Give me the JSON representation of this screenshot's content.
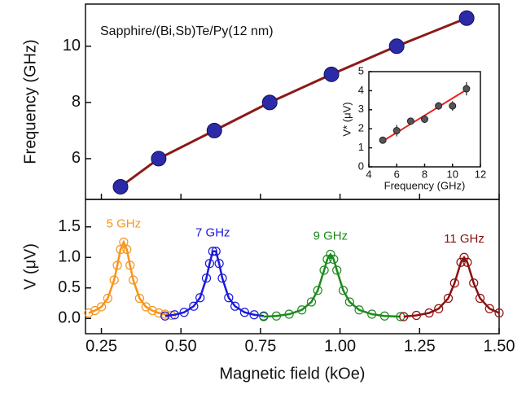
{
  "chart_data": [
    {
      "type": "scatter",
      "annotation": "Sapphire/(Bi,Sb)Te/Py(12 nm)",
      "ylabel": "Frequency (GHz)",
      "x": [
        0.31,
        0.43,
        0.605,
        0.779,
        0.973,
        1.178,
        1.398
      ],
      "values": [
        5,
        6,
        7,
        8,
        9,
        10,
        11
      ],
      "color": "#2b2ba8",
      "line_color": "#8b1a1a",
      "xlim": [
        0.2,
        1.5
      ],
      "ylim": [
        4.55,
        11.5
      ],
      "yticks": [
        6,
        8,
        10
      ]
    },
    {
      "type": "errorbar",
      "xlabel": "Frequency (GHz)",
      "ylabel": "V* (μV)",
      "x": [
        5,
        6,
        7,
        8,
        9,
        10,
        11
      ],
      "values": [
        1.4,
        1.9,
        2.4,
        2.5,
        3.2,
        3.2,
        4.1
      ],
      "errors": [
        0.15,
        0.3,
        0.15,
        0.2,
        0.2,
        0.25,
        0.35
      ],
      "color": "#222222",
      "fit": {
        "x": [
          5,
          11
        ],
        "values": [
          1.35,
          4.05
        ],
        "color": "#e8231f"
      },
      "xlim": [
        4,
        12
      ],
      "xticks": [
        4,
        6,
        8,
        10,
        12
      ],
      "ylim": [
        0,
        5
      ],
      "yticks": [
        0,
        1,
        2,
        3,
        4,
        5
      ]
    },
    {
      "type": "line",
      "xlabel": "Magnetic field (kOe)",
      "ylabel": "V (μV)",
      "xlim": [
        0.2,
        1.5
      ],
      "xticks": [
        0.25,
        {
          "value": 0.5,
          "label": "0.50"
        },
        0.75,
        {
          "value": 1,
          "label": "1.00"
        },
        1.25,
        {
          "value": 1.5,
          "label": "1.50"
        }
      ],
      "ylim": [
        -0.25,
        1.95
      ],
      "yticks": [
        {
          "value": 0,
          "label": "0.0"
        },
        {
          "value": 0.5,
          "label": "0.5"
        },
        {
          "value": 1,
          "label": "1.0"
        },
        {
          "value": 1.5,
          "label": "1.5"
        }
      ],
      "series": [
        {
          "name": "5 GHz",
          "color": "#f7941d",
          "x": [
            0.21,
            0.23,
            0.25,
            0.27,
            0.29,
            0.3,
            0.31,
            0.32,
            0.33,
            0.34,
            0.35,
            0.37,
            0.39,
            0.41,
            0.43,
            0.45,
            0.47
          ],
          "values": [
            0.09,
            0.13,
            0.19,
            0.33,
            0.63,
            0.87,
            1.13,
            1.25,
            1.13,
            0.87,
            0.63,
            0.33,
            0.19,
            0.13,
            0.09,
            0.07,
            0.05
          ]
        },
        {
          "name": "7 GHz",
          "color": "#1a1adb",
          "x": [
            0.45,
            0.48,
            0.51,
            0.54,
            0.56,
            0.58,
            0.59,
            0.6,
            0.61,
            0.62,
            0.63,
            0.65,
            0.67,
            0.7,
            0.73,
            0.76
          ],
          "values": [
            0.04,
            0.06,
            0.1,
            0.2,
            0.34,
            0.66,
            0.9,
            1.1,
            1.1,
            0.9,
            0.66,
            0.34,
            0.2,
            0.1,
            0.06,
            0.04
          ]
        },
        {
          "name": "9 GHz",
          "color": "#1e8a1e",
          "x": [
            0.76,
            0.8,
            0.84,
            0.88,
            0.91,
            0.93,
            0.95,
            0.96,
            0.97,
            0.98,
            0.99,
            1.01,
            1.03,
            1.06,
            1.1,
            1.14,
            1.19
          ],
          "values": [
            0.03,
            0.04,
            0.07,
            0.14,
            0.27,
            0.46,
            0.79,
            0.97,
            1.05,
            0.97,
            0.79,
            0.46,
            0.27,
            0.14,
            0.07,
            0.04,
            0.03
          ]
        },
        {
          "name": "11 GHz",
          "color": "#8b1010",
          "x": [
            1.2,
            1.24,
            1.28,
            1.31,
            1.34,
            1.36,
            1.38,
            1.39,
            1.4,
            1.42,
            1.44,
            1.47,
            1.5
          ],
          "values": [
            0.03,
            0.05,
            0.09,
            0.16,
            0.33,
            0.58,
            0.92,
            1.0,
            0.92,
            0.58,
            0.33,
            0.16,
            0.09
          ]
        }
      ]
    }
  ]
}
